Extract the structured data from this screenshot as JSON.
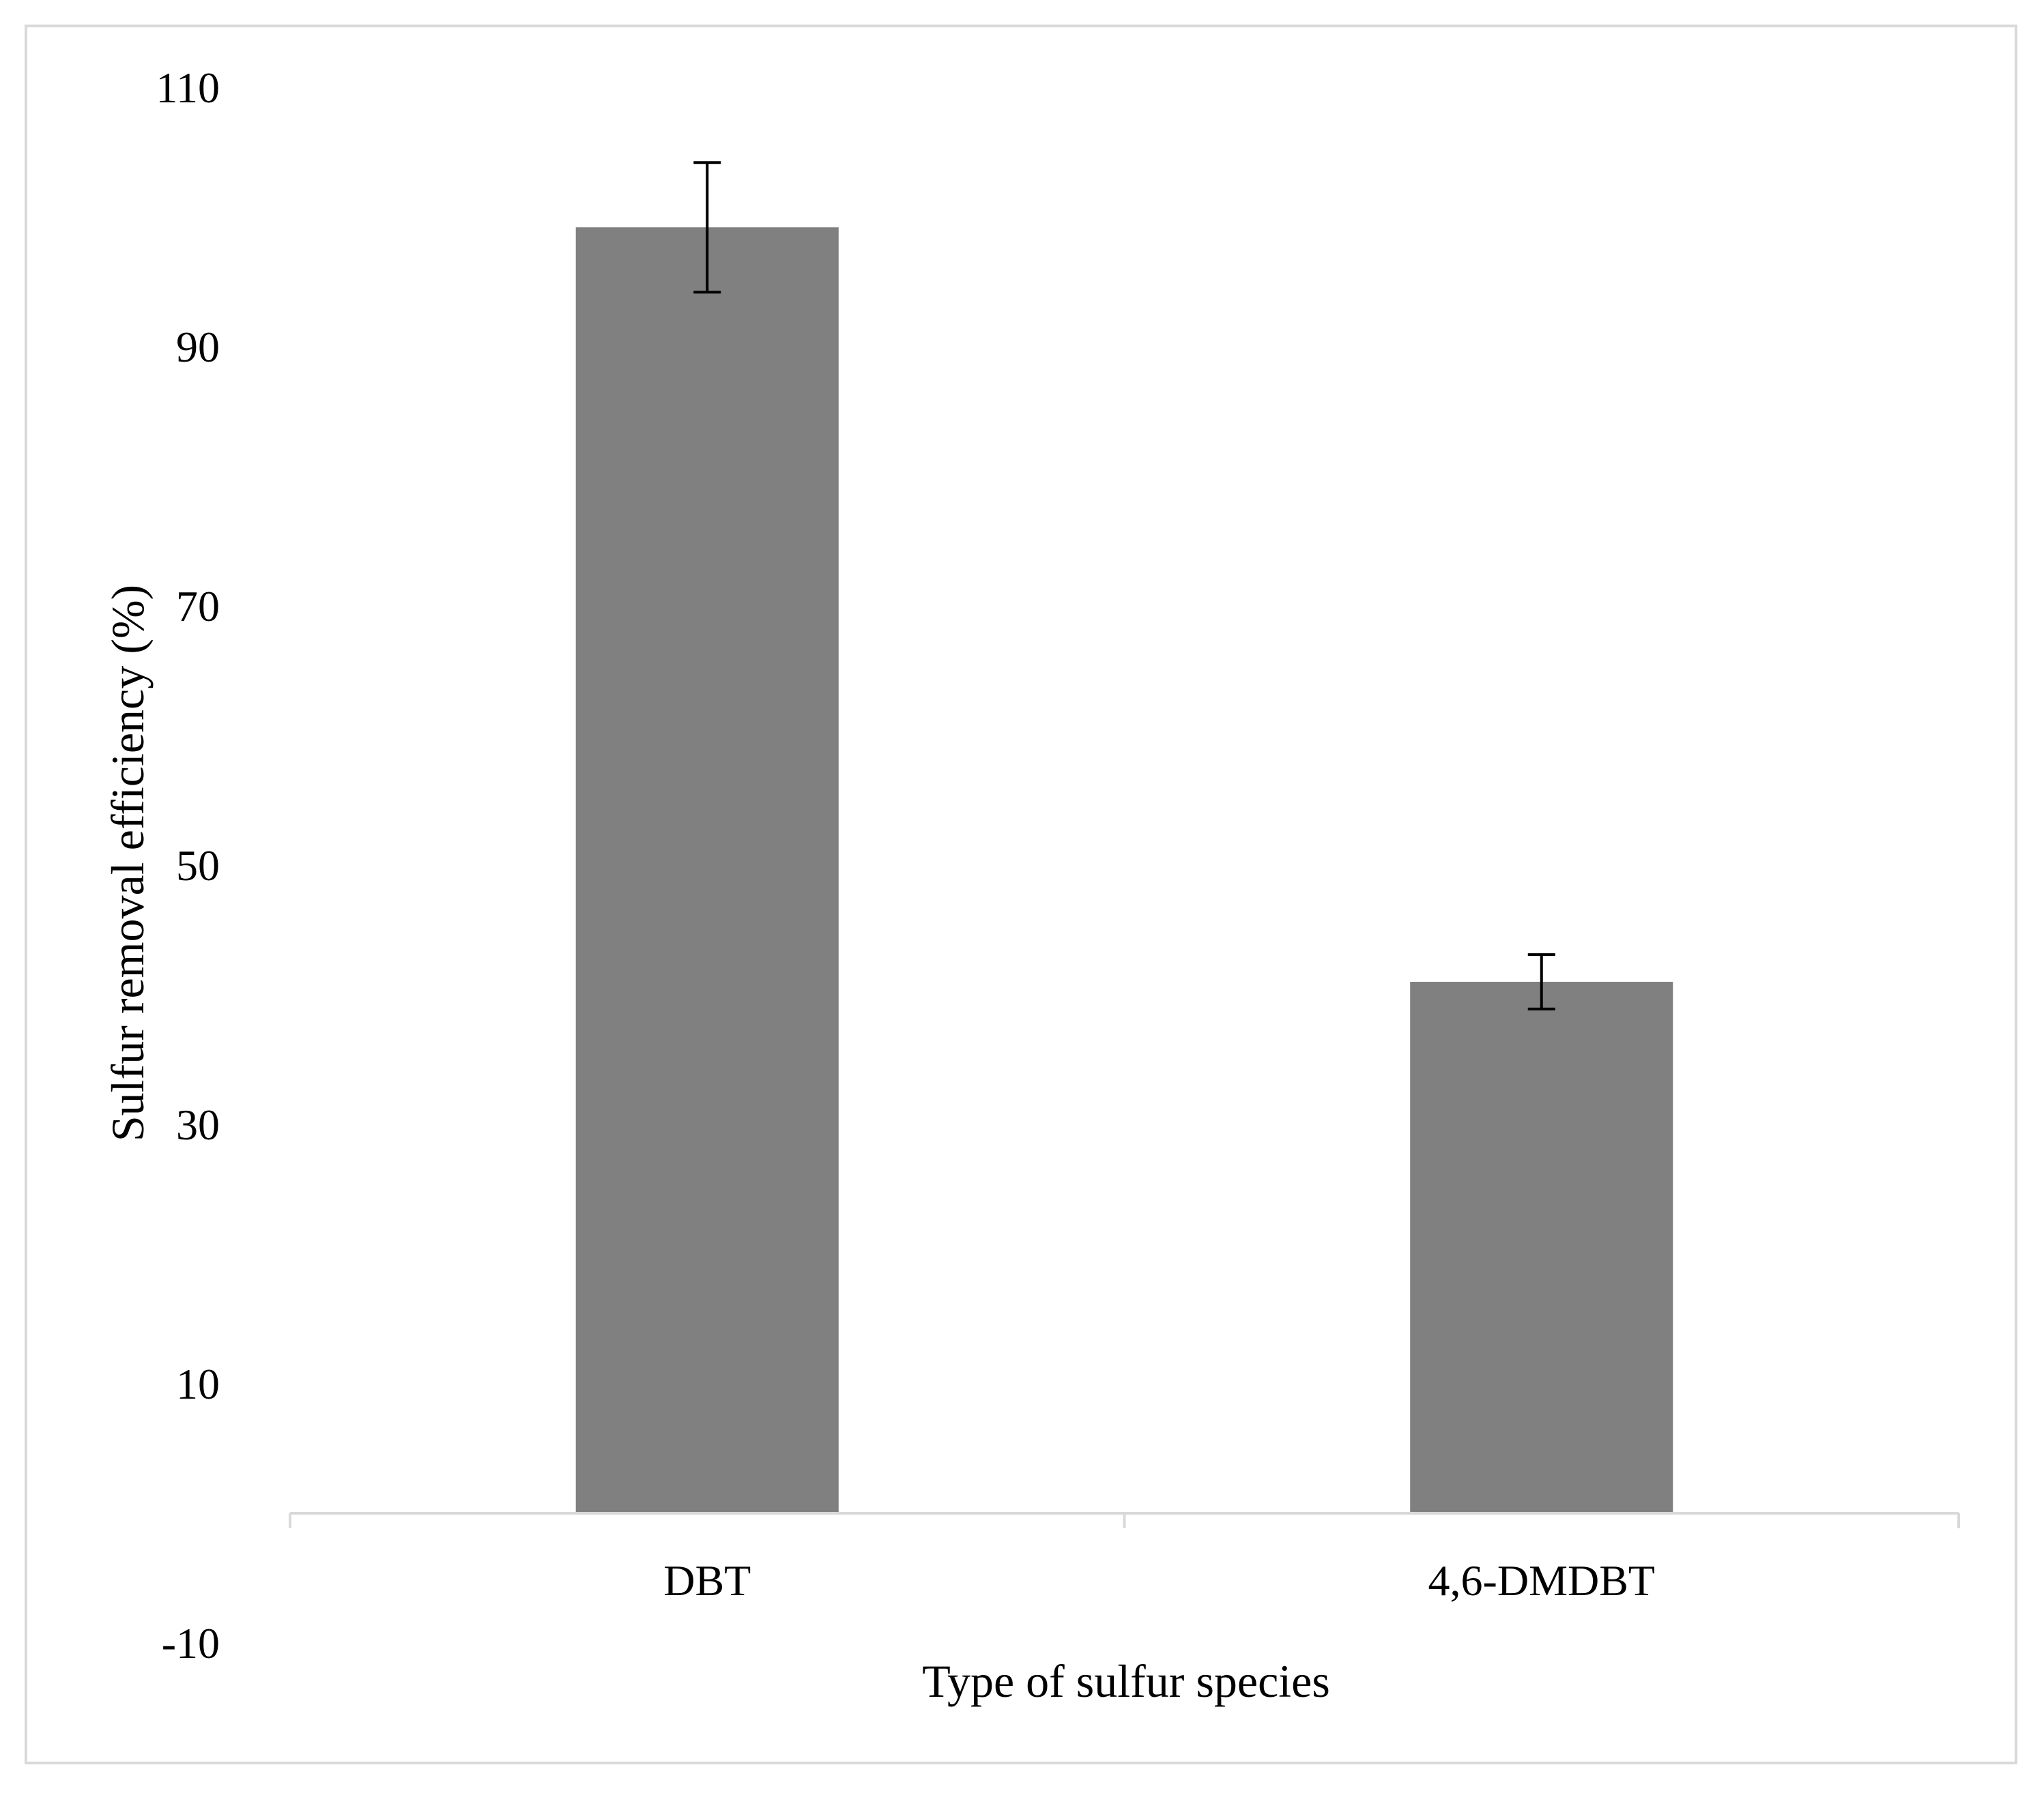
{
  "chart_data": {
    "type": "bar",
    "title": "",
    "xlabel": "Type of sulfur species",
    "ylabel": "Sulfur removal efficiency (%)",
    "categories": [
      "DBT",
      "4,6-DMDBT"
    ],
    "values": [
      99.2,
      41.0
    ],
    "error": [
      5.0,
      2.1
    ],
    "yticks": [
      110,
      90,
      70,
      50,
      30,
      10,
      -10
    ],
    "ylim": [
      -10,
      110
    ],
    "x_axis_crosses_at": 0,
    "bar_color": "#808080",
    "error_bar_color": "#000000",
    "grid": false,
    "legend": "none"
  }
}
